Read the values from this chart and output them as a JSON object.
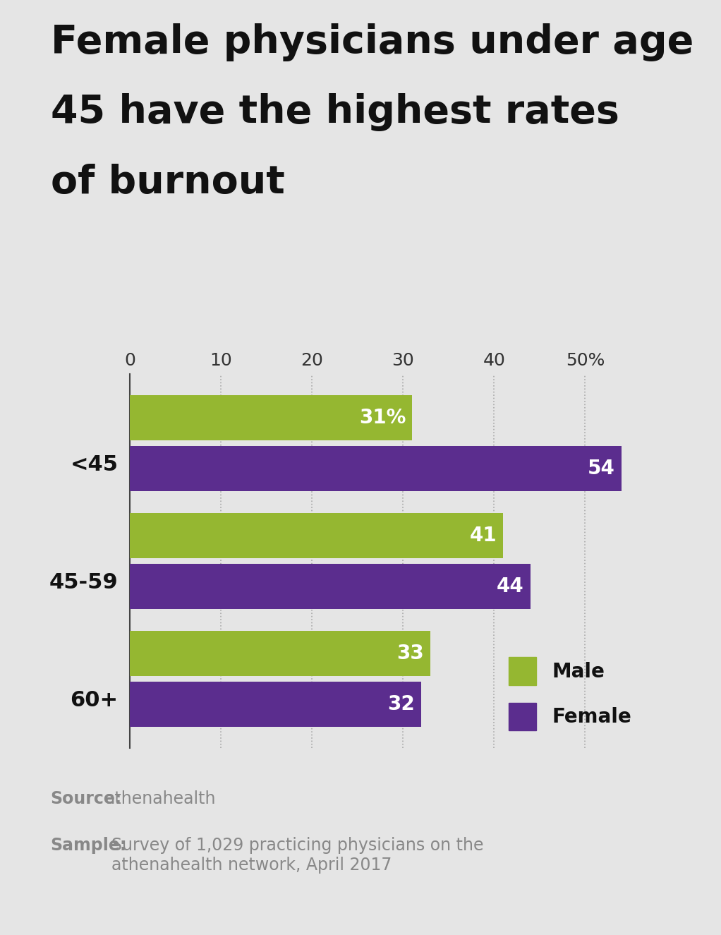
{
  "title_line1": "Female physicians under age",
  "title_line2": "45 have the highest rates",
  "title_line3": "of burnout",
  "background_color": "#e5e5e5",
  "categories": [
    "<45",
    "45-59",
    "60+"
  ],
  "male_values": [
    31,
    41,
    33
  ],
  "female_values": [
    54,
    44,
    32
  ],
  "male_labels": [
    "31%",
    "41",
    "33"
  ],
  "female_labels": [
    "54",
    "44",
    "32"
  ],
  "male_color": "#95b731",
  "female_color": "#5b2d8e",
  "bar_height": 0.38,
  "bar_gap": 0.05,
  "xlim": [
    0,
    57
  ],
  "xticks": [
    0,
    10,
    20,
    30,
    40,
    50
  ],
  "xtick_labels": [
    "0",
    "10",
    "20",
    "30",
    "40",
    "50%"
  ],
  "grid_color": "#aaaaaa",
  "title_fontsize": 40,
  "title_color": "#111111",
  "label_fontsize": 20,
  "ytick_fontsize": 22,
  "xtick_fontsize": 18,
  "source_bold": "Source:",
  "source_normal": " athenahealth",
  "sample_bold": "Sample:",
  "sample_normal": " Survey of 1,029 practicing physicians on the\nathenahealth network, April 2017",
  "footer_fontsize": 17,
  "footer_color": "#888888",
  "legend_male": "Male",
  "legend_female": "Female",
  "legend_fontsize": 20
}
